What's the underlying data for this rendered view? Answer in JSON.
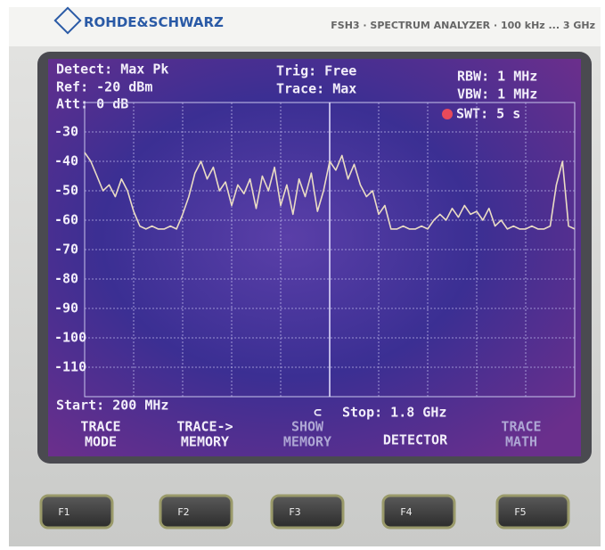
{
  "header": {
    "brand": "ROHDE&SCHWARZ",
    "model": "FSH3 · SPECTRUM ANALYZER · 100 kHz ... 3 GHz"
  },
  "status": {
    "detect": "Detect: Max Pk",
    "ref": "Ref: -20 dBm",
    "att": "Att: 0 dB",
    "trig": "Trig: Free",
    "trace": "Trace: Max",
    "rbw": "RBW: 1 MHz",
    "vbw": "VBW: 1 MHz",
    "swt": "SWT: 5 s"
  },
  "chart_data": {
    "type": "line",
    "start": "Start: 200 MHz",
    "stop": "Stop: 1.8 GHz",
    "x": [
      200,
      220,
      240,
      260,
      280,
      300,
      320,
      340,
      360,
      380,
      400,
      420,
      440,
      460,
      480,
      500,
      520,
      540,
      560,
      580,
      600,
      620,
      640,
      660,
      680,
      700,
      720,
      740,
      760,
      780,
      800,
      820,
      840,
      860,
      880,
      900,
      920,
      940,
      960,
      980,
      1000,
      1020,
      1040,
      1060,
      1080,
      1100,
      1120,
      1140,
      1160,
      1180,
      1200,
      1220,
      1240,
      1260,
      1280,
      1300,
      1320,
      1340,
      1360,
      1380,
      1400,
      1420,
      1440,
      1460,
      1480,
      1500,
      1520,
      1540,
      1560,
      1580,
      1600,
      1620,
      1640,
      1660,
      1680,
      1700,
      1720,
      1740,
      1760,
      1780,
      1800
    ],
    "values": [
      -37,
      -40,
      -45,
      -50,
      -48,
      -52,
      -46,
      -50,
      -57,
      -62,
      -63,
      -62,
      -63,
      -63,
      -62,
      -63,
      -58,
      -52,
      -44,
      -40,
      -46,
      -42,
      -50,
      -47,
      -55,
      -48,
      -51,
      -46,
      -56,
      -45,
      -50,
      -42,
      -55,
      -48,
      -58,
      -46,
      -52,
      -44,
      -57,
      -50,
      -40,
      -43,
      -38,
      -46,
      -41,
      -48,
      -52,
      -50,
      -58,
      -55,
      -63,
      -63,
      -62,
      -63,
      -63,
      -62,
      -63,
      -60,
      -58,
      -60,
      -56,
      -59,
      -55,
      -58,
      -57,
      -60,
      -56,
      -62,
      -60,
      -63,
      -62,
      -63,
      -63,
      -62,
      -63,
      -63,
      -62,
      -48,
      -40,
      -62,
      -63
    ],
    "color": "#eadcc4",
    "xlim": [
      200,
      1800
    ],
    "ylim": [
      -120,
      -20
    ],
    "yticks": [
      -30,
      -40,
      -50,
      -60,
      -70,
      -80,
      -90,
      -100,
      -110
    ],
    "grid": true
  },
  "softkeys": [
    [
      "TRACE",
      "MODE"
    ],
    [
      "TRACE->",
      "MEMORY"
    ],
    [
      "SHOW",
      "MEMORY"
    ],
    [
      "DETECTOR"
    ],
    [
      "TRACE",
      "MATH"
    ]
  ],
  "buttons": [
    "F1",
    "F2",
    "F3",
    "F4",
    "F5"
  ]
}
